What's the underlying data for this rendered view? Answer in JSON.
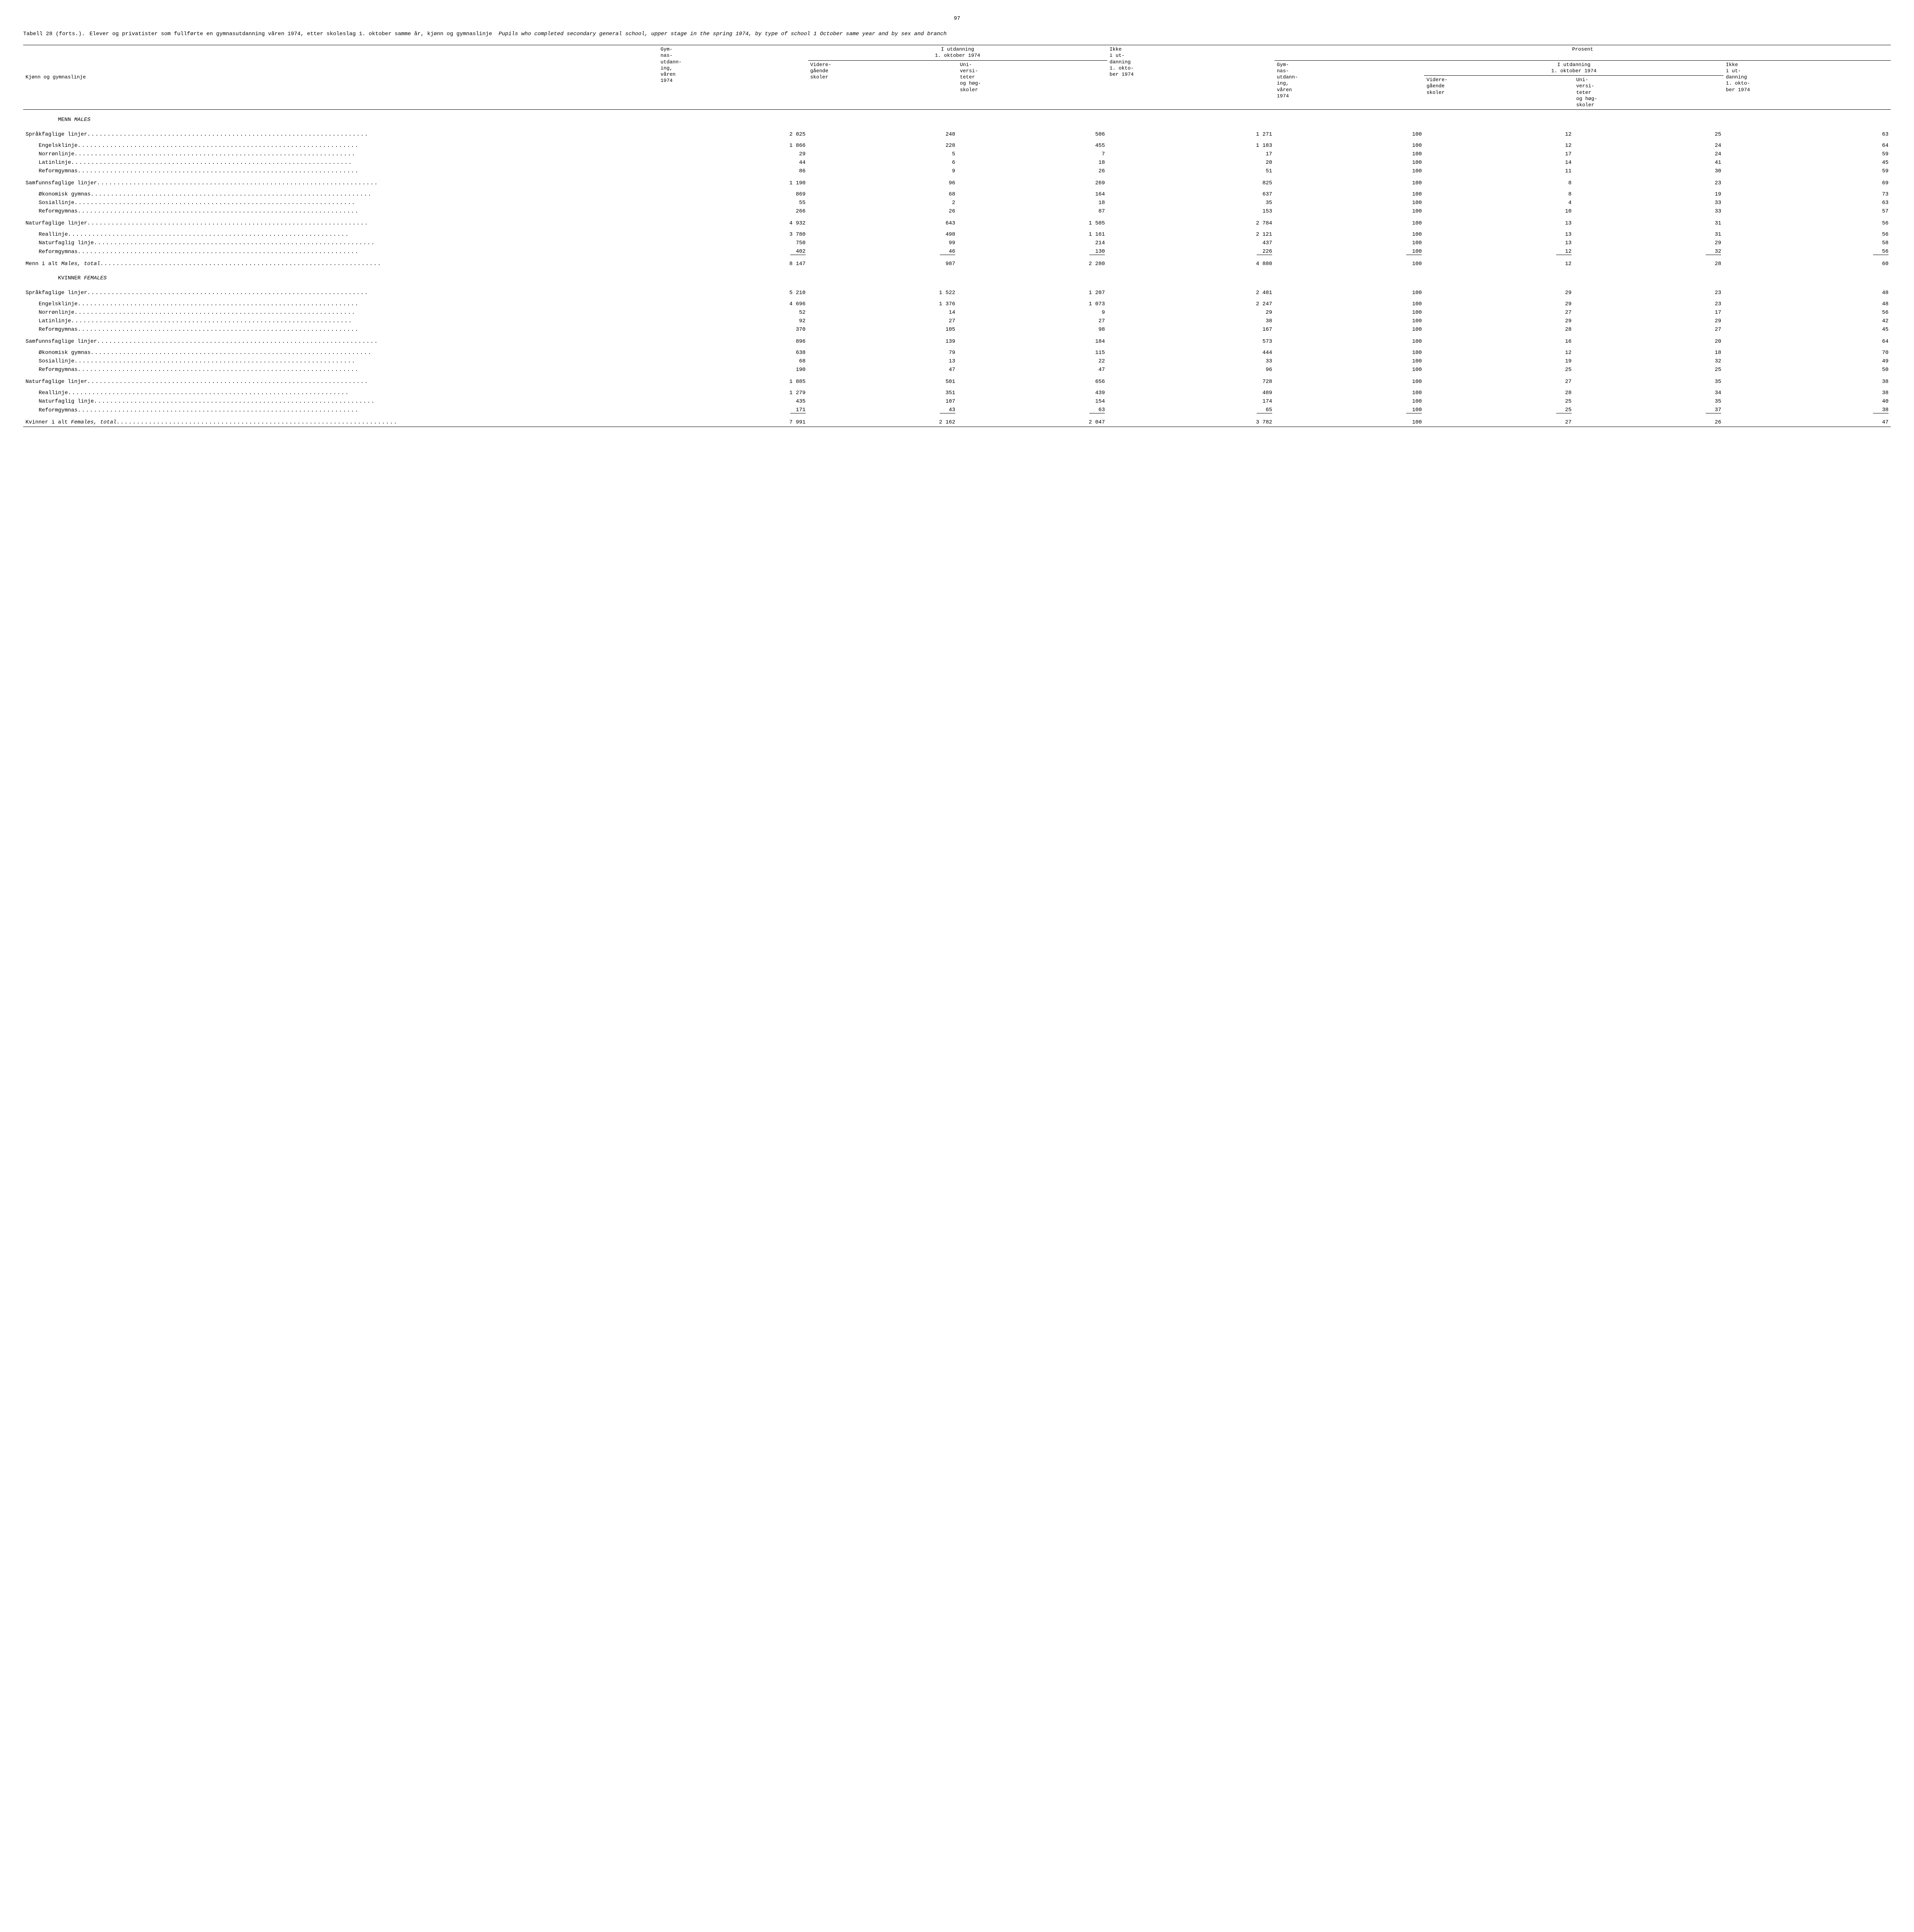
{
  "page_number": "97",
  "title_label": "Tabell 28 (forts.).",
  "title_no": "Elever og privatister som fullførte en gymnasutdanning våren 1974, etter skoleslag 1. oktober samme år, kjønn og gymnaslinje",
  "title_en": "Pupils who completed secondary general school, upper stage in the spring 1974, by type of school 1 October same year and by sex and branch",
  "headers": {
    "row_label": "Kjønn og gymnaslinje",
    "abs": {
      "c1": "Gym-\nnas-\nutdann-\ning,\nvåren\n1974",
      "group": "I utdanning\n1. oktober 1974",
      "c2": "Videre-\ngående\nskoler",
      "c3": "Uni-\nversi-\nteter\nog høg-\nskoler",
      "c4": "Ikke\ni ut-\ndanning\n1. okto-\nber 1974"
    },
    "pct": {
      "top": "Prosent",
      "c1": "Gym-\nnas-\nutdann-\ning,\nvåren\n1974",
      "group": "I utdanning\n1. oktober 1974",
      "c2": "Videre-\ngående\nskoler",
      "c3": "Uni-\nversi-\nteter\nog høg-\nskoler",
      "c4": "Ikke\ni ut-\ndanning\n1. okto-\nber 1974"
    }
  },
  "sections": [
    {
      "head_no": "MENN",
      "head_en": "MALES",
      "groups": [
        {
          "label": "Språkfaglige linjer",
          "v": [
            "2 025",
            "248",
            "506",
            "1 271",
            "100",
            "12",
            "25",
            "63"
          ],
          "subs": [
            {
              "label": "Engelsklinje",
              "v": [
                "1 866",
                "228",
                "455",
                "1 183",
                "100",
                "12",
                "24",
                "64"
              ]
            },
            {
              "label": "Norrønlinje",
              "v": [
                "29",
                "5",
                "7",
                "17",
                "100",
                "17",
                "24",
                "59"
              ]
            },
            {
              "label": "Latinlinje",
              "v": [
                "44",
                "6",
                "18",
                "20",
                "100",
                "14",
                "41",
                "45"
              ]
            },
            {
              "label": "Reformgymnas",
              "v": [
                "86",
                "9",
                "26",
                "51",
                "100",
                "11",
                "30",
                "59"
              ]
            }
          ]
        },
        {
          "label": "Samfunnsfaglige linjer",
          "v": [
            "1 190",
            "96",
            "269",
            "825",
            "100",
            "8",
            "23",
            "69"
          ],
          "subs": [
            {
              "label": "Økonomisk gymnas",
              "v": [
                "869",
                "68",
                "164",
                "637",
                "100",
                "8",
                "19",
                "73"
              ]
            },
            {
              "label": "Sosiallinje",
              "v": [
                "55",
                "2",
                "18",
                "35",
                "100",
                "4",
                "33",
                "63"
              ]
            },
            {
              "label": "Reformgymnas",
              "v": [
                "266",
                "26",
                "87",
                "153",
                "100",
                "10",
                "33",
                "57"
              ]
            }
          ]
        },
        {
          "label": "Naturfaglige linjer",
          "v": [
            "4 932",
            "643",
            "1 505",
            "2 784",
            "100",
            "13",
            "31",
            "56"
          ],
          "subs": [
            {
              "label": "Reallinje",
              "v": [
                "3 780",
                "498",
                "1 161",
                "2 121",
                "100",
                "13",
                "31",
                "56"
              ]
            },
            {
              "label": "Naturfaglig linje",
              "v": [
                "750",
                "99",
                "214",
                "437",
                "100",
                "13",
                "29",
                "58"
              ]
            },
            {
              "label": "Reformgymnas",
              "v": [
                "402",
                "46",
                "130",
                "226",
                "100",
                "12",
                "32",
                "56"
              ],
              "underline": true
            }
          ]
        }
      ],
      "total": {
        "label_no": "Menn i alt",
        "label_en": "Males, total",
        "v": [
          "8 147",
          "987",
          "2 280",
          "4 880",
          "100",
          "12",
          "28",
          "60"
        ]
      }
    },
    {
      "head_no": "KVINNER",
      "head_en": "FEMALES",
      "groups": [
        {
          "label": "Språkfaglige linjer",
          "v": [
            "5 210",
            "1 522",
            "1 207",
            "2 481",
            "100",
            "29",
            "23",
            "48"
          ],
          "subs": [
            {
              "label": "Engelsklinje",
              "v": [
                "4 696",
                "1 376",
                "1 073",
                "2 247",
                "100",
                "29",
                "23",
                "48"
              ]
            },
            {
              "label": "Norrønlinje",
              "v": [
                "52",
                "14",
                "9",
                "29",
                "100",
                "27",
                "17",
                "56"
              ]
            },
            {
              "label": "Latinlinje",
              "v": [
                "92",
                "27",
                "27",
                "38",
                "100",
                "29",
                "29",
                "42"
              ]
            },
            {
              "label": "Reformgymnas",
              "v": [
                "370",
                "105",
                "98",
                "167",
                "100",
                "28",
                "27",
                "45"
              ]
            }
          ]
        },
        {
          "label": "Samfunnsfaglige linjer",
          "v": [
            "896",
            "139",
            "184",
            "573",
            "100",
            "16",
            "20",
            "64"
          ],
          "subs": [
            {
              "label": "Økonomisk gymnas",
              "v": [
                "638",
                "79",
                "115",
                "444",
                "100",
                "12",
                "18",
                "70"
              ]
            },
            {
              "label": "Sosiallinje",
              "v": [
                "68",
                "13",
                "22",
                "33",
                "100",
                "19",
                "32",
                "49"
              ]
            },
            {
              "label": "Reformgymnas",
              "v": [
                "190",
                "47",
                "47",
                "96",
                "100",
                "25",
                "25",
                "50"
              ]
            }
          ]
        },
        {
          "label": "Naturfaglige linjer",
          "v": [
            "1 885",
            "501",
            "656",
            "728",
            "100",
            "27",
            "35",
            "38"
          ],
          "subs": [
            {
              "label": "Reallinje",
              "v": [
                "1 279",
                "351",
                "439",
                "489",
                "100",
                "28",
                "34",
                "38"
              ]
            },
            {
              "label": "Naturfaglig linje",
              "v": [
                "435",
                "107",
                "154",
                "174",
                "100",
                "25",
                "35",
                "40"
              ]
            },
            {
              "label": "Reformgymnas",
              "v": [
                "171",
                "43",
                "63",
                "65",
                "100",
                "25",
                "37",
                "38"
              ],
              "underline": true
            }
          ]
        }
      ],
      "total": {
        "label_no": "Kvinner i alt",
        "label_en": "Females, total",
        "v": [
          "7 991",
          "2 162",
          "2 047",
          "3 782",
          "100",
          "27",
          "26",
          "47"
        ],
        "final_rule": true
      }
    }
  ]
}
